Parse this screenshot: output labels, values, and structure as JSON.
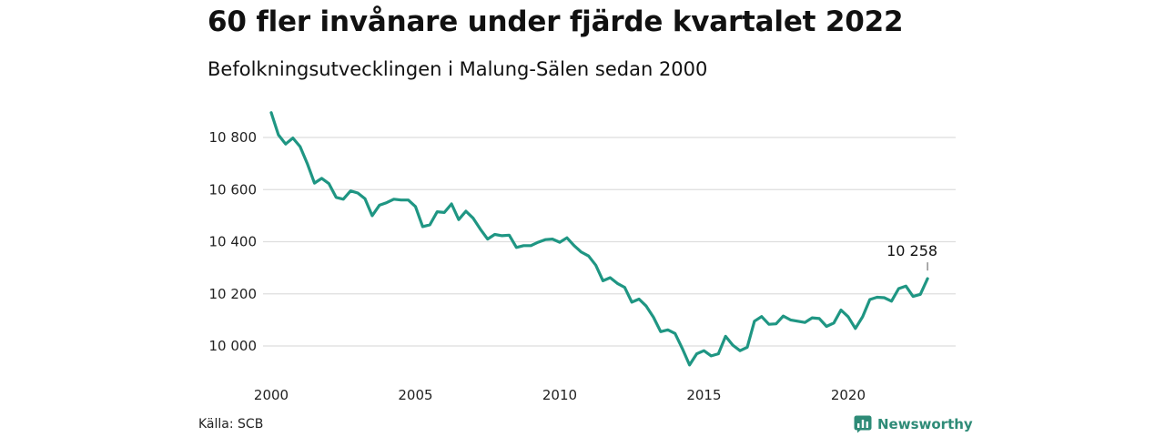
{
  "title": "60 fler invånare under fjärde kvartalet 2022",
  "subtitle": "Befolkningsutvecklingen i Malung-Sälen sedan 2000",
  "source": "Källa: SCB",
  "brand": "Newsworthy",
  "colors": {
    "line": "#1f9683",
    "grid": "#dedede",
    "brand": "#2e8b77"
  },
  "chart_data": {
    "type": "line",
    "x_unit": "year (decimal, quarterly)",
    "y_unit": "invånare",
    "xlim": [
      2000,
      2023.3
    ],
    "ylim": [
      9920,
      10920
    ],
    "x_ticks": [
      2000,
      2005,
      2010,
      2015,
      2020
    ],
    "x_tick_labels": [
      "2000",
      "2005",
      "2010",
      "2015",
      "2020"
    ],
    "y_ticks": [
      10000,
      10200,
      10400,
      10600,
      10800
    ],
    "y_tick_labels": [
      "10 000",
      "10 200",
      "10 400",
      "10 600",
      "10 800"
    ],
    "grid": true,
    "end_label": "10 258",
    "series": [
      {
        "x": [
          2000.0,
          2000.25,
          2000.5,
          2000.75,
          2001.0,
          2001.25,
          2001.5,
          2001.75,
          2002.0,
          2002.25,
          2002.5,
          2002.75,
          2003.0,
          2003.25,
          2003.5,
          2003.75,
          2004.0,
          2004.25,
          2004.5,
          2004.75,
          2005.0,
          2005.25,
          2005.5,
          2005.75,
          2006.0,
          2006.25,
          2006.5,
          2006.75,
          2007.0,
          2007.25,
          2007.5,
          2007.75,
          2008.0,
          2008.25,
          2008.5,
          2008.75,
          2009.0,
          2009.25,
          2009.5,
          2009.75,
          2010.0,
          2010.25,
          2010.5,
          2010.75,
          2011.0,
          2011.25,
          2011.5,
          2011.75,
          2012.0,
          2012.25,
          2012.5,
          2012.75,
          2013.0,
          2013.25,
          2013.5,
          2013.75,
          2014.0,
          2014.25,
          2014.5,
          2014.75,
          2015.0,
          2015.25,
          2015.5,
          2015.75,
          2016.0,
          2016.25,
          2016.5,
          2016.75,
          2017.0,
          2017.25,
          2017.5,
          2017.75,
          2018.0,
          2018.25,
          2018.5,
          2018.75,
          2019.0,
          2019.25,
          2019.5,
          2019.75,
          2020.0,
          2020.25,
          2020.5,
          2020.75,
          2021.0,
          2021.25,
          2021.5,
          2021.75,
          2022.0,
          2022.25,
          2022.5,
          2022.75
        ],
        "values": [
          10895,
          10810,
          10775,
          10798,
          10765,
          10700,
          10625,
          10643,
          10623,
          10570,
          10563,
          10595,
          10587,
          10565,
          10500,
          10540,
          10550,
          10563,
          10560,
          10560,
          10535,
          10458,
          10465,
          10515,
          10512,
          10545,
          10485,
          10517,
          10490,
          10448,
          10410,
          10428,
          10423,
          10425,
          10378,
          10385,
          10385,
          10398,
          10408,
          10410,
          10398,
          10415,
          10385,
          10360,
          10345,
          10310,
          10250,
          10262,
          10240,
          10225,
          10168,
          10180,
          10153,
          10110,
          10055,
          10062,
          10048,
          9990,
          9927,
          9970,
          9982,
          9962,
          9970,
          10037,
          10003,
          9982,
          9995,
          10095,
          10113,
          10083,
          10085,
          10115,
          10100,
          10095,
          10090,
          10108,
          10105,
          10075,
          10088,
          10138,
          10112,
          10067,
          10112,
          10178,
          10187,
          10185,
          10172,
          10220,
          10230,
          10190,
          10198,
          10258
        ]
      }
    ]
  }
}
